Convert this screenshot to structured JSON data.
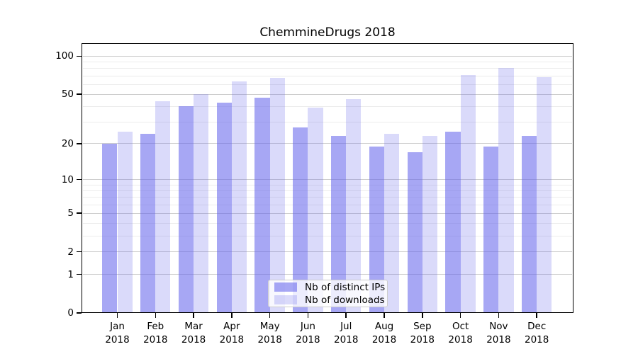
{
  "chart_data": {
    "type": "bar",
    "title": "ChemmineDrugs 2018",
    "year_label": "2018",
    "categories": [
      "Jan",
      "Feb",
      "Mar",
      "Apr",
      "May",
      "Jun",
      "Jul",
      "Aug",
      "Sep",
      "Oct",
      "Nov",
      "Dec"
    ],
    "series": [
      {
        "name": "Nb of distinct IPs",
        "color": "rgba(100,100,235,0.57)",
        "color_hex": "#a7a7f4",
        "values": [
          20,
          24,
          40,
          43,
          47,
          27,
          23,
          19,
          17,
          25,
          19,
          23
        ]
      },
      {
        "name": "Nb of downloads",
        "color": "rgba(100,100,235,0.24)",
        "color_hex": "#dadafa",
        "values": [
          25,
          44,
          50,
          63,
          67,
          39,
          46,
          24,
          23,
          71,
          81,
          68
        ]
      }
    ],
    "yticks": [
      0,
      1,
      2,
      5,
      10,
      20,
      50,
      100
    ],
    "minor_gridlines": [
      3,
      4,
      6,
      7,
      8,
      9,
      30,
      40,
      60,
      70,
      80,
      90
    ],
    "scale": "log1p",
    "ylim": [
      0,
      130
    ],
    "grid": "major+minor",
    "grid_major_color": "#cdcdcd",
    "grid_minor_color": "#ececec",
    "legend_position": "lower center",
    "xlabel": "",
    "ylabel": ""
  }
}
